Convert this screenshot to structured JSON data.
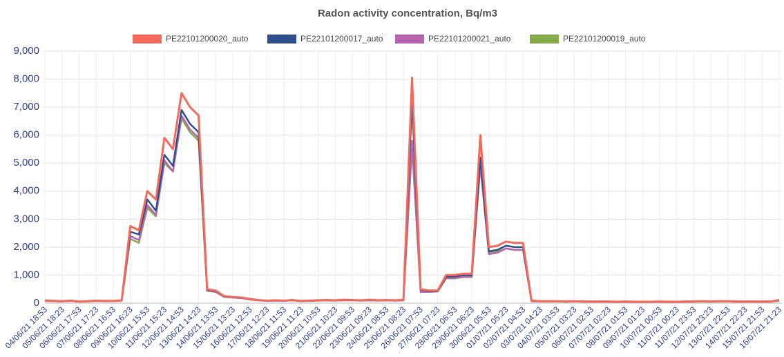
{
  "chart_data": {
    "type": "line",
    "title": "Radon activity concentration, Bq/m3",
    "categories": [
      "04/06/21 18:53",
      null,
      "05/06/21 18:23",
      null,
      "06/06/21 17:53",
      null,
      "07/06/21 17:23",
      null,
      "08/06/21 16:53",
      null,
      "09/06/21 16:23",
      null,
      "10/06/21 15:53",
      null,
      "11/06/21 15:23",
      null,
      "12/06/21 14:53",
      null,
      "13/06/21 14:23",
      null,
      "14/06/21 13:53",
      null,
      "15/06/21 13:23",
      null,
      "16/06/21 12:53",
      null,
      "17/06/21 12:23",
      null,
      "18/06/21 11:53",
      null,
      "19/06/21 11:23",
      null,
      "20/06/21 10:53",
      null,
      "21/06/21 10:23",
      null,
      "22/06/21 09:53",
      null,
      "23/06/21 09:23",
      null,
      "24/06/21 08:53",
      null,
      "25/06/21 08:23",
      null,
      "26/06/21 07:53",
      null,
      "27/06/21 07:23",
      null,
      "28/06/21 06:53",
      null,
      "29/06/21 06:23",
      null,
      "30/06/21 05:53",
      null,
      "01/07/21 05:23",
      null,
      "02/07/21 04:53",
      null,
      "03/07/21 04:23",
      null,
      "04/07/21 03:53",
      null,
      "05/07/21 03:23",
      null,
      "06/07/21 02:53",
      null,
      "07/07/21 02:23",
      null,
      "08/07/21 01:53",
      null,
      "09/07/21 01:23",
      null,
      "10/07/21 00:53",
      null,
      "11/07/21 00:23",
      null,
      "11/07/21 23:53",
      null,
      "12/07/21 23:23",
      null,
      "13/07/21 22:53",
      null,
      "14/07/21 22:23",
      null,
      "15/07/21 21:53",
      null,
      "16/07/21 21:23"
    ],
    "series": [
      {
        "name": "PE22101200020_auto",
        "color": "#f4695a",
        "values": [
          90,
          80,
          70,
          90,
          60,
          70,
          90,
          80,
          80,
          100,
          2750,
          2600,
          4000,
          3700,
          5900,
          5500,
          7500,
          7000,
          6700,
          500,
          450,
          250,
          220,
          200,
          150,
          110,
          90,
          100,
          90,
          110,
          80,
          90,
          100,
          110,
          100,
          120,
          110,
          100,
          120,
          100,
          110,
          100,
          120,
          8050,
          500,
          450,
          450,
          1000,
          1000,
          1050,
          1050,
          6000,
          2000,
          2050,
          2200,
          2150,
          2150,
          90,
          70,
          70,
          70,
          60,
          70,
          60,
          60,
          60,
          60,
          50,
          60,
          50,
          50,
          50,
          60,
          50,
          50,
          60,
          60,
          70,
          60,
          70,
          70,
          60,
          60,
          60,
          60,
          60,
          110
        ]
      },
      {
        "name": "PE22101200017_auto",
        "color": "#2f4f8c",
        "values": [
          100,
          90,
          70,
          90,
          60,
          70,
          90,
          80,
          80,
          100,
          2550,
          2450,
          3700,
          3300,
          5300,
          4900,
          6900,
          6400,
          6100,
          480,
          430,
          240,
          210,
          190,
          140,
          100,
          90,
          100,
          90,
          100,
          80,
          90,
          100,
          100,
          100,
          110,
          100,
          100,
          110,
          100,
          100,
          100,
          110,
          7250,
          480,
          430,
          430,
          950,
          950,
          1000,
          1000,
          5200,
          1850,
          1900,
          2050,
          2000,
          2000,
          80,
          70,
          70,
          70,
          60,
          70,
          60,
          60,
          60,
          60,
          50,
          60,
          50,
          50,
          50,
          60,
          50,
          50,
          60,
          60,
          70,
          60,
          70,
          70,
          60,
          60,
          60,
          60,
          60,
          100
        ]
      },
      {
        "name": "PE22101200021_auto",
        "color": "#b565b0",
        "values": [
          80,
          70,
          60,
          80,
          50,
          60,
          80,
          70,
          70,
          90,
          2400,
          2250,
          3500,
          3150,
          5100,
          4700,
          6700,
          6200,
          5900,
          450,
          400,
          230,
          200,
          180,
          130,
          100,
          80,
          90,
          80,
          100,
          70,
          80,
          90,
          100,
          90,
          100,
          100,
          90,
          100,
          90,
          100,
          90,
          100,
          5800,
          400,
          400,
          420,
          900,
          900,
          950,
          950,
          5000,
          1750,
          1800,
          1950,
          1900,
          1900,
          70,
          60,
          60,
          60,
          50,
          60,
          50,
          50,
          50,
          50,
          40,
          50,
          40,
          40,
          40,
          50,
          40,
          40,
          50,
          50,
          60,
          50,
          60,
          60,
          50,
          50,
          50,
          50,
          50,
          90
        ]
      },
      {
        "name": "PE22101200019_auto",
        "color": "#86ab4b",
        "values": [
          80,
          70,
          60,
          80,
          50,
          60,
          80,
          70,
          70,
          90,
          2300,
          2150,
          3400,
          3100,
          5000,
          4700,
          6600,
          6100,
          5800,
          440,
          400,
          220,
          200,
          180,
          130,
          100,
          80,
          90,
          80,
          100,
          70,
          80,
          90,
          100,
          90,
          100,
          100,
          90,
          100,
          90,
          100,
          90,
          100,
          5600,
          420,
          400,
          420,
          880,
          880,
          930,
          930,
          4900,
          1800,
          1850,
          1950,
          1900,
          1900,
          70,
          60,
          60,
          60,
          50,
          60,
          50,
          50,
          50,
          50,
          40,
          50,
          40,
          40,
          40,
          50,
          40,
          40,
          50,
          50,
          60,
          50,
          60,
          60,
          50,
          50,
          50,
          50,
          50,
          90
        ]
      }
    ],
    "ylim": [
      0,
      9000
    ],
    "yticks": [
      0,
      {
        "value": 1000,
        "label": "1,000"
      },
      {
        "value": 2000,
        "label": "2,000"
      },
      {
        "value": 3000,
        "label": "3,000"
      },
      {
        "value": 4000,
        "label": "4,000"
      },
      {
        "value": 5000,
        "label": "5,000"
      },
      {
        "value": 6000,
        "label": "6,000"
      },
      {
        "value": 7000,
        "label": "7,000"
      },
      {
        "value": 8000,
        "label": "8,000"
      },
      {
        "value": 9000,
        "label": "9,000"
      }
    ],
    "grid": true
  }
}
